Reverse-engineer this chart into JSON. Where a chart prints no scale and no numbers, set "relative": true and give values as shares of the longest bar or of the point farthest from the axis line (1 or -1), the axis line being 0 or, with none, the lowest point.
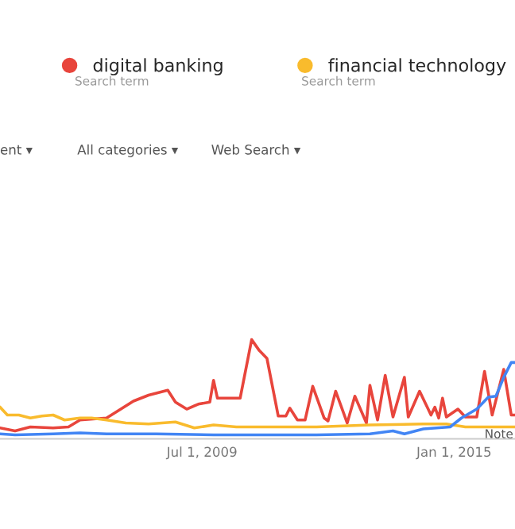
{
  "chart_data": {
    "type": "line",
    "relative": true,
    "xlim": [
      "2005-02-01",
      "2016-05-01"
    ],
    "xticks": [
      {
        "value": "2009-07-01",
        "label": "Jul 1, 2009"
      },
      {
        "value": "2015-01-01",
        "label": "Jan 1, 2015"
      }
    ],
    "legend": "top",
    "marker": "none",
    "line_style": "solid",
    "annotations": [
      "Search term",
      "Search term",
      "ent ▾",
      "All categories ▾",
      "Web Search ▾",
      {
        "text": "Note",
        "x": "2015-09",
        "y": 0.1
      }
    ],
    "series": [
      {
        "name": "digital banking",
        "color": "#e8453c",
        "x": [
          "2005-02",
          "2005-06",
          "2005-10",
          "2006-04",
          "2006-08",
          "2006-11",
          "2007-06",
          "2008-01",
          "2008-05",
          "2008-10",
          "2008-12",
          "2009-03",
          "2009-06",
          "2009-09",
          "2009-10",
          "2009-11",
          "2010-05",
          "2010-08",
          "2010-10",
          "2010-12",
          "2011-03",
          "2011-05",
          "2011-06",
          "2011-08",
          "2011-10",
          "2011-12",
          "2012-03",
          "2012-04",
          "2012-06",
          "2012-09",
          "2012-11",
          "2013-02",
          "2013-03",
          "2013-05",
          "2013-07",
          "2013-09",
          "2013-12",
          "2014-01",
          "2014-04",
          "2014-06",
          "2014-07",
          "2014-08",
          "2014-09",
          "2014-10",
          "2014-11",
          "2015-02",
          "2015-04",
          "2015-07",
          "2015-09",
          "2015-11",
          "2016-02",
          "2016-04",
          "2016-05"
        ],
        "values": [
          0.11,
          0.08,
          0.12,
          0.11,
          0.12,
          0.19,
          0.21,
          0.38,
          0.44,
          0.49,
          0.37,
          0.3,
          0.35,
          0.37,
          0.59,
          0.41,
          0.41,
          1.0,
          0.89,
          0.81,
          0.23,
          0.23,
          0.31,
          0.19,
          0.19,
          0.53,
          0.21,
          0.18,
          0.48,
          0.16,
          0.43,
          0.16,
          0.54,
          0.19,
          0.64,
          0.22,
          0.62,
          0.22,
          0.48,
          0.32,
          0.24,
          0.32,
          0.21,
          0.41,
          0.22,
          0.3,
          0.22,
          0.22,
          0.68,
          0.24,
          0.7,
          0.24,
          0.24
        ]
      },
      {
        "name": "financial technology",
        "color": "#f9bb2d",
        "x": [
          "2005-02",
          "2005-04",
          "2005-07",
          "2005-10",
          "2006-01",
          "2006-04",
          "2006-07",
          "2006-11",
          "2007-02",
          "2007-06",
          "2007-11",
          "2008-05",
          "2008-12",
          "2009-05",
          "2009-10",
          "2010-04",
          "2010-12",
          "2012-01",
          "2013-03",
          "2014-05",
          "2014-11",
          "2015-04",
          "2015-10",
          "2016-05"
        ],
        "values": [
          0.32,
          0.24,
          0.24,
          0.21,
          0.23,
          0.24,
          0.19,
          0.21,
          0.21,
          0.19,
          0.16,
          0.15,
          0.17,
          0.11,
          0.14,
          0.12,
          0.12,
          0.12,
          0.14,
          0.15,
          0.15,
          0.12,
          0.12,
          0.12
        ]
      },
      {
        "color": "#4285f4",
        "x": [
          "2005-02",
          "2005-06",
          "2006-04",
          "2006-11",
          "2007-06",
          "2008-07",
          "2009-10",
          "2010-12",
          "2012-01",
          "2013-03",
          "2013-09",
          "2013-12",
          "2014-05",
          "2014-12",
          "2015-03",
          "2015-07",
          "2015-10",
          "2015-12",
          "2016-02",
          "2016-04",
          "2016-05"
        ],
        "values": [
          0.05,
          0.04,
          0.05,
          0.06,
          0.05,
          0.05,
          0.04,
          0.04,
          0.04,
          0.05,
          0.08,
          0.05,
          0.1,
          0.12,
          0.21,
          0.3,
          0.42,
          0.43,
          0.62,
          0.77,
          0.77
        ]
      }
    ]
  }
}
